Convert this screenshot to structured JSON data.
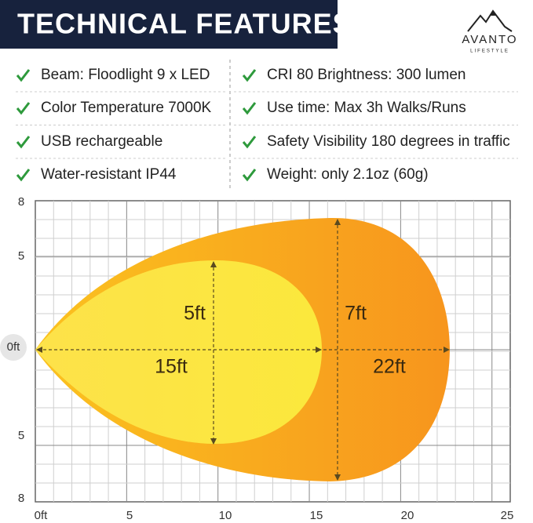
{
  "header": {
    "title": "TECHNICAL FEATURES",
    "brand": "AVANTO",
    "tagline": "LIFESTYLE"
  },
  "features": [
    [
      "Beam: Floodlight 9 x LED",
      "CRI 80 Brightness: 300 lumen"
    ],
    [
      "Color Temperature 7000K",
      "Use time: Max 3h Walks/Runs"
    ],
    [
      "USB rechargeable",
      "Safety Visibility 180 degrees in traffic"
    ],
    [
      "Water-resistant IP44",
      "Weight: only 2.1oz (60g)"
    ]
  ],
  "diagram": {
    "x_labels": [
      "0ft",
      "5",
      "10",
      "15",
      "20",
      "25"
    ],
    "y_labels": [
      "8",
      "5",
      "0ft",
      "5",
      "8"
    ],
    "annotations": [
      "5ft",
      "15ft",
      "7ft",
      "22ft"
    ]
  }
}
